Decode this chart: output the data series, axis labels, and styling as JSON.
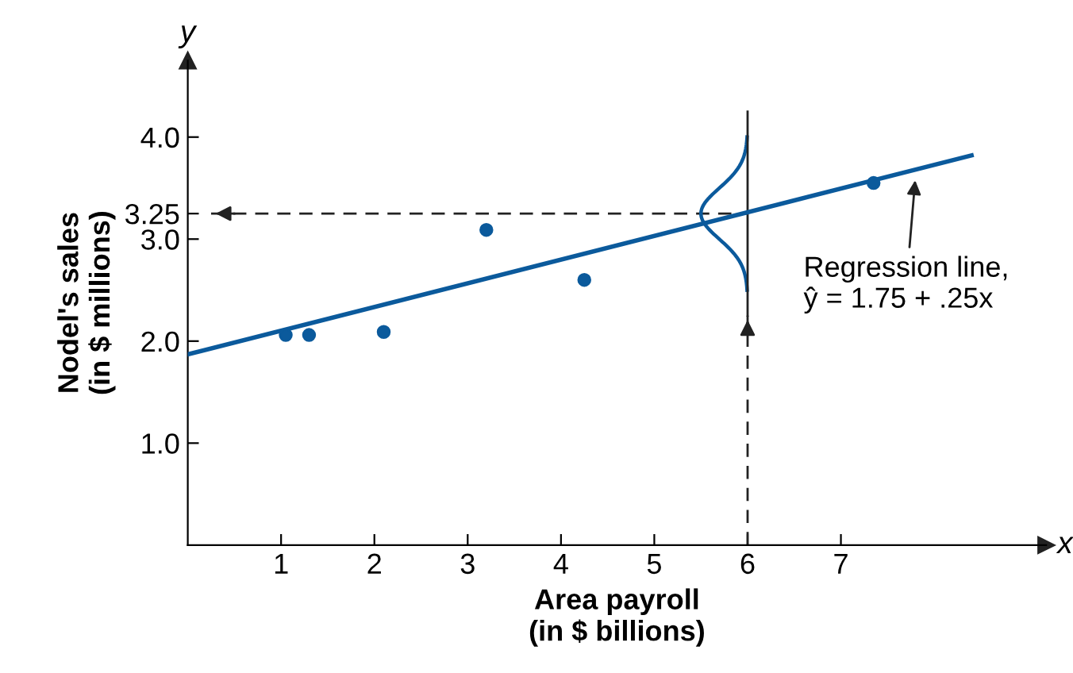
{
  "chart_data": {
    "type": "scatter",
    "xlabel": "Area payroll\n(in $ billions)",
    "ylabel": "Nodel's sales\n(in $ millions)",
    "x": [
      1.05,
      1.3,
      2.1,
      3.2,
      4.25,
      7.35
    ],
    "series": [
      {
        "color": "#0b5a9c",
        "marker": "circle",
        "values": [
          2.06,
          2.06,
          2.09,
          3.09,
          2.6,
          3.55
        ]
      },
      {
        "type": "line",
        "color": "#0b5a9c",
        "x": [
          0,
          8.4
        ],
        "values": [
          1.87,
          3.82
        ]
      }
    ],
    "annotations": [
      {
        "text": "Regression line,\nŷ = 1.75 + .25x",
        "x": 7.8,
        "y": 3.62
      },
      "x",
      "y"
    ],
    "ref_lines": [
      {
        "axis": "y",
        "value": 3.25,
        "line_style": "dashed",
        "color": "#222222"
      },
      {
        "axis": "x",
        "value": 6,
        "line_style": "dashed",
        "color": "#222222"
      }
    ],
    "xlim": [
      0,
      9.2
    ],
    "ylim": [
      0,
      4.75
    ],
    "xticks": [
      1,
      2,
      3,
      4,
      5,
      6,
      7
    ],
    "yticks": [
      {
        "value": 1.0,
        "label": "1.0"
      },
      {
        "value": 2.0,
        "label": "2.0"
      },
      {
        "value": 3.0,
        "label": "3.0"
      },
      {
        "value": 3.25,
        "label": "3.25"
      },
      {
        "value": 4.0,
        "label": "4.0"
      }
    ],
    "grid": false
  }
}
